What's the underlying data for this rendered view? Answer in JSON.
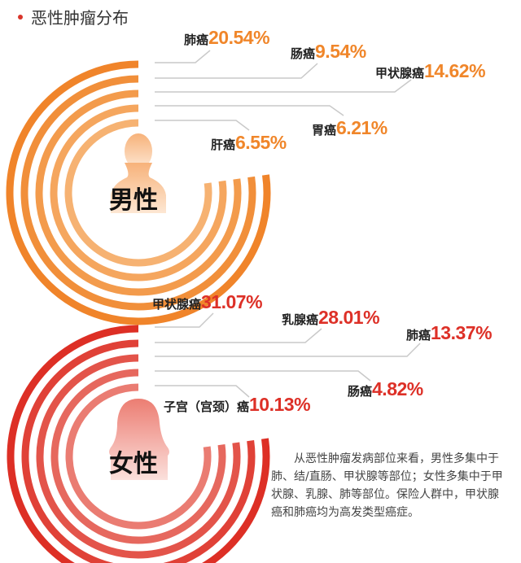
{
  "title": "恶性肿瘤分布",
  "colors": {
    "male": "#f0862a",
    "female": "#dd3027",
    "bullet": "#d9352b"
  },
  "male": {
    "label": "男性",
    "items": [
      {
        "name": "肺癌",
        "value": "20.54%"
      },
      {
        "name": "肠癌",
        "value": "9.54%"
      },
      {
        "name": "甲状腺癌",
        "value": "14.62%"
      },
      {
        "name": "胃癌",
        "value": "6.21%"
      },
      {
        "name": "肝癌",
        "value": "6.55%"
      }
    ]
  },
  "female": {
    "label": "女性",
    "items": [
      {
        "name": "甲状腺癌",
        "value": "31.07%"
      },
      {
        "name": "乳腺癌",
        "value": "28.01%"
      },
      {
        "name": "肺癌",
        "value": "13.37%"
      },
      {
        "name": "肠癌",
        "value": "4.82%"
      },
      {
        "name": "子宫（宫颈）癌",
        "value": "10.13%"
      }
    ]
  },
  "note": "从恶性肿瘤发病部位来看，男性多集中于肺、结/直肠、甲状腺等部位；女性多集中于甲状腺、乳腺、肺等部位。保险人群中，甲状腺癌和肺癌均为高发类型癌症。",
  "chart_data": [
    {
      "type": "radial-bar",
      "title": "恶性肿瘤分布 - 男性",
      "categories": [
        "肺癌",
        "肠癌",
        "甲状腺癌",
        "胃癌",
        "肝癌"
      ],
      "values": [
        20.54,
        9.54,
        14.62,
        6.21,
        6.55
      ],
      "unit": "%"
    },
    {
      "type": "radial-bar",
      "title": "恶性肿瘤分布 - 女性",
      "categories": [
        "甲状腺癌",
        "乳腺癌",
        "肺癌",
        "肠癌",
        "子宫（宫颈）癌"
      ],
      "values": [
        31.07,
        28.01,
        13.37,
        4.82,
        10.13
      ],
      "unit": "%"
    }
  ]
}
